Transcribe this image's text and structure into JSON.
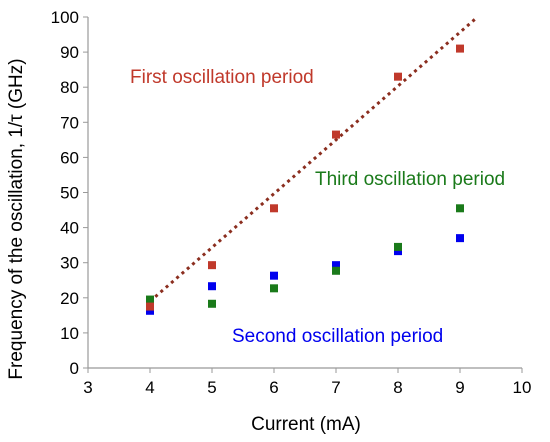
{
  "chart_data": {
    "type": "scatter",
    "xlabel": "Current (mA)",
    "ylabel": "Frequency of the oscillation,  1/τ  (GHz)",
    "xlim": [
      3,
      10
    ],
    "ylim": [
      0,
      100
    ],
    "x_ticks": [
      "3",
      "4",
      "5",
      "6",
      "7",
      "8",
      "9",
      "10"
    ],
    "y_ticks": [
      "0",
      "10",
      "20",
      "30",
      "40",
      "50",
      "60",
      "70",
      "80",
      "90",
      "100"
    ],
    "grid": false,
    "series": [
      {
        "name": "First oscillation period",
        "color": "#c0392b",
        "marker": "square",
        "x": [
          4,
          5,
          6,
          7,
          8,
          9
        ],
        "y": [
          17.5,
          29.3,
          45.5,
          66.5,
          83,
          91
        ]
      },
      {
        "name": "Second oscillation period",
        "color": "#0000ee",
        "marker": "square",
        "x": [
          4,
          5,
          6,
          7,
          8,
          9
        ],
        "y": [
          16.3,
          23.3,
          26.3,
          29.3,
          33.3,
          37
        ]
      },
      {
        "name": "Third oscillation period",
        "color": "#1a7a1a",
        "marker": "square",
        "x": [
          4,
          5,
          6,
          7,
          8,
          9
        ],
        "y": [
          19.5,
          18.3,
          22.7,
          27.7,
          34.5,
          45.5
        ]
      }
    ],
    "trendline": {
      "series": "First oscillation period",
      "style": "dotted",
      "color": "#8b2e1f",
      "x": [
        4,
        9.25
      ],
      "y": [
        19,
        99.5
      ]
    },
    "annotations": [
      {
        "series": "First oscillation period",
        "text": "First oscillation period",
        "color": "#c0392b"
      },
      {
        "series": "Third oscillation period",
        "text": "Third oscillation period",
        "color": "#1a7a1a"
      },
      {
        "series": "Second oscillation period",
        "text": "Second oscillation period",
        "color": "#0000ee"
      }
    ]
  }
}
